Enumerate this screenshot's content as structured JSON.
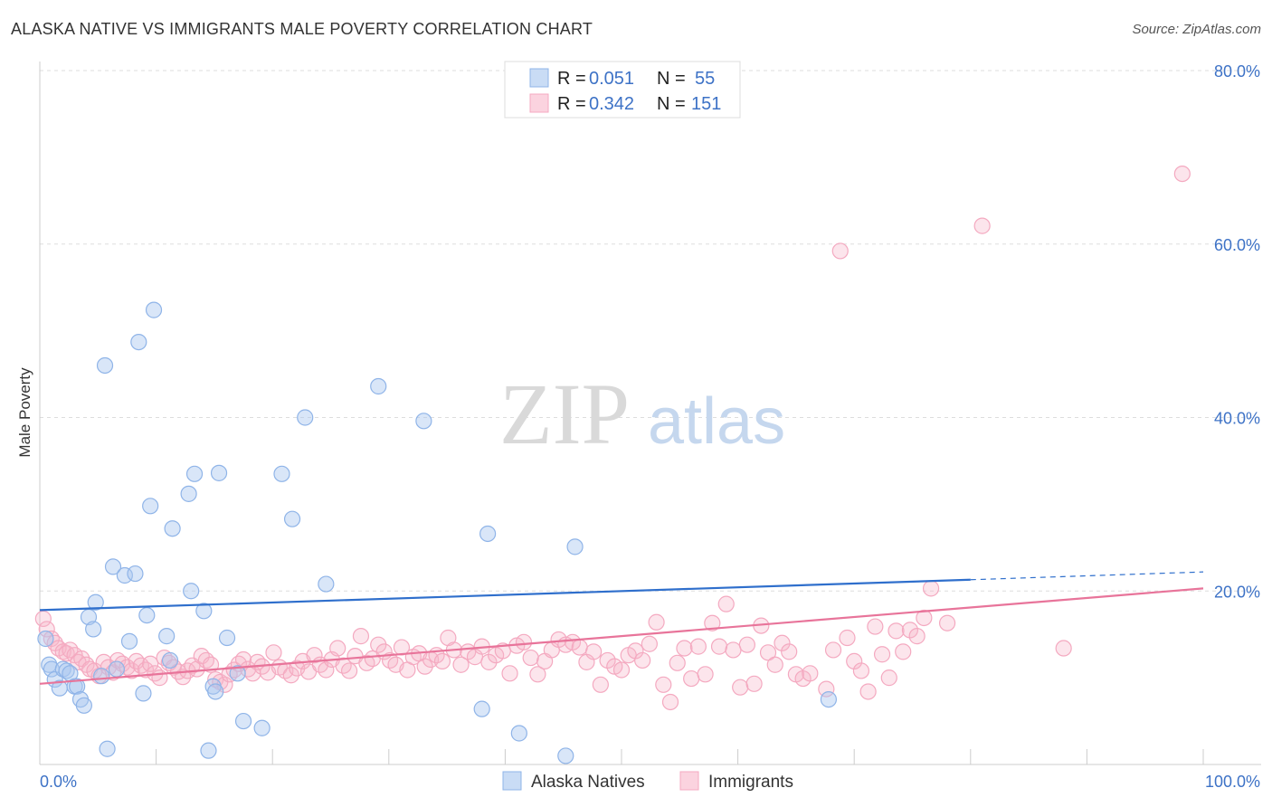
{
  "header": {
    "title": "ALASKA NATIVE VS IMMIGRANTS MALE POVERTY CORRELATION CHART",
    "source": "Source: ZipAtlas.com"
  },
  "watermark": {
    "part1": "ZIP",
    "part2": "atlas"
  },
  "legend": {
    "rows": [
      {
        "r_label": "R =",
        "r_value": "0.051",
        "n_label": "N =",
        "n_value": "55"
      },
      {
        "r_label": "R =",
        "r_value": "0.342",
        "n_label": "N =",
        "n_value": "151"
      }
    ]
  },
  "chart_data": {
    "type": "scatter",
    "ylabel": "Male Poverty",
    "xlim": [
      0,
      100
    ],
    "ylim": [
      0,
      80
    ],
    "x_tick_labels": [
      {
        "value": 0,
        "label": "0.0%"
      },
      {
        "value": 100,
        "label": "100.0%"
      }
    ],
    "y_ticks": [
      {
        "value": 20,
        "label": "20.0%"
      },
      {
        "value": 40,
        "label": "40.0%"
      },
      {
        "value": 60,
        "label": "60.0%"
      },
      {
        "value": 80,
        "label": "80.0%"
      }
    ],
    "grid": true,
    "legend_position": "top-center",
    "series": [
      {
        "name": "Alaska Natives",
        "color": "#8fb4e8",
        "line_color": "#2f6fcc",
        "trend": {
          "x0": 0,
          "y0": 17.8,
          "x1": 80,
          "y1": 21.3,
          "dash_to_x": 100,
          "dash_to_y": 22.2
        },
        "points": [
          [
            0.5,
            14.5
          ],
          [
            0.8,
            11.5
          ],
          [
            1.0,
            11.0
          ],
          [
            1.3,
            9.8
          ],
          [
            1.7,
            8.8
          ],
          [
            2.0,
            11.0
          ],
          [
            2.3,
            10.8
          ],
          [
            2.6,
            10.5
          ],
          [
            3.0,
            9.0
          ],
          [
            3.2,
            9.0
          ],
          [
            3.5,
            7.5
          ],
          [
            3.8,
            6.8
          ],
          [
            4.2,
            17.0
          ],
          [
            4.6,
            15.6
          ],
          [
            4.8,
            18.7
          ],
          [
            5.3,
            10.2
          ],
          [
            5.6,
            46.0
          ],
          [
            5.8,
            1.8
          ],
          [
            6.3,
            22.8
          ],
          [
            6.6,
            11.0
          ],
          [
            7.3,
            21.8
          ],
          [
            7.7,
            14.2
          ],
          [
            8.2,
            22.0
          ],
          [
            8.5,
            48.7
          ],
          [
            8.9,
            8.2
          ],
          [
            9.2,
            17.2
          ],
          [
            9.5,
            29.8
          ],
          [
            9.8,
            52.4
          ],
          [
            10.9,
            14.8
          ],
          [
            11.2,
            12.0
          ],
          [
            11.4,
            27.2
          ],
          [
            12.8,
            31.2
          ],
          [
            13.0,
            20.0
          ],
          [
            13.3,
            33.5
          ],
          [
            14.1,
            17.7
          ],
          [
            14.5,
            1.6
          ],
          [
            14.9,
            9.0
          ],
          [
            15.1,
            8.4
          ],
          [
            15.4,
            33.6
          ],
          [
            16.1,
            14.6
          ],
          [
            17.0,
            10.5
          ],
          [
            17.5,
            5.0
          ],
          [
            19.1,
            4.2
          ],
          [
            20.8,
            33.5
          ],
          [
            21.7,
            28.3
          ],
          [
            22.8,
            40.0
          ],
          [
            24.6,
            20.8
          ],
          [
            29.1,
            43.6
          ],
          [
            33.0,
            39.6
          ],
          [
            38.0,
            6.4
          ],
          [
            38.5,
            26.6
          ],
          [
            41.2,
            3.6
          ],
          [
            45.2,
            1.0
          ],
          [
            46.0,
            25.1
          ],
          [
            67.8,
            7.5
          ]
        ]
      },
      {
        "name": "Immigrants",
        "color": "#f4a9c0",
        "line_color": "#e8749a",
        "trend": {
          "x0": 0,
          "y0": 9.3,
          "x1": 100,
          "y1": 20.3
        },
        "points": [
          [
            0.3,
            16.8
          ],
          [
            0.6,
            15.6
          ],
          [
            1.0,
            14.5
          ],
          [
            1.3,
            14.0
          ],
          [
            1.6,
            13.4
          ],
          [
            2.0,
            13.0
          ],
          [
            2.3,
            12.8
          ],
          [
            2.6,
            13.2
          ],
          [
            3.0,
            12.6
          ],
          [
            3.3,
            11.8
          ],
          [
            3.6,
            12.2
          ],
          [
            4.0,
            11.5
          ],
          [
            4.3,
            11.0
          ],
          [
            4.7,
            10.8
          ],
          [
            5.1,
            10.2
          ],
          [
            5.5,
            11.8
          ],
          [
            5.9,
            11.2
          ],
          [
            6.3,
            10.6
          ],
          [
            6.7,
            12.0
          ],
          [
            7.1,
            11.6
          ],
          [
            7.5,
            11.2
          ],
          [
            7.9,
            10.8
          ],
          [
            8.3,
            11.9
          ],
          [
            8.7,
            11.4
          ],
          [
            9.1,
            10.9
          ],
          [
            9.5,
            11.6
          ],
          [
            9.9,
            10.5
          ],
          [
            10.3,
            10.0
          ],
          [
            10.7,
            12.3
          ],
          [
            11.1,
            11.7
          ],
          [
            11.5,
            11.2
          ],
          [
            11.9,
            10.7
          ],
          [
            12.3,
            10.1
          ],
          [
            12.7,
            10.8
          ],
          [
            13.1,
            11.4
          ],
          [
            13.5,
            11.0
          ],
          [
            13.9,
            12.5
          ],
          [
            14.3,
            12.0
          ],
          [
            14.7,
            11.5
          ],
          [
            15.1,
            9.8
          ],
          [
            15.5,
            9.5
          ],
          [
            15.9,
            9.2
          ],
          [
            16.3,
            10.4
          ],
          [
            16.7,
            10.9
          ],
          [
            17.1,
            11.6
          ],
          [
            17.5,
            12.1
          ],
          [
            17.9,
            11.0
          ],
          [
            18.3,
            10.5
          ],
          [
            18.7,
            11.8
          ],
          [
            19.1,
            11.3
          ],
          [
            19.6,
            10.6
          ],
          [
            20.1,
            12.9
          ],
          [
            20.6,
            11.2
          ],
          [
            21.1,
            10.8
          ],
          [
            21.6,
            10.3
          ],
          [
            22.1,
            11.1
          ],
          [
            22.6,
            11.9
          ],
          [
            23.1,
            10.7
          ],
          [
            23.6,
            12.6
          ],
          [
            24.1,
            11.5
          ],
          [
            24.6,
            10.9
          ],
          [
            25.1,
            12.1
          ],
          [
            25.6,
            13.4
          ],
          [
            26.1,
            11.4
          ],
          [
            26.6,
            10.8
          ],
          [
            27.1,
            12.5
          ],
          [
            27.6,
            14.8
          ],
          [
            28.1,
            11.7
          ],
          [
            28.6,
            12.2
          ],
          [
            29.1,
            13.8
          ],
          [
            29.6,
            13.0
          ],
          [
            30.1,
            12.0
          ],
          [
            30.6,
            11.5
          ],
          [
            31.1,
            13.5
          ],
          [
            31.6,
            10.9
          ],
          [
            32.1,
            12.4
          ],
          [
            32.6,
            12.8
          ],
          [
            33.1,
            11.3
          ],
          [
            33.6,
            12.1
          ],
          [
            34.1,
            12.6
          ],
          [
            34.6,
            11.9
          ],
          [
            35.1,
            14.6
          ],
          [
            35.6,
            13.2
          ],
          [
            36.2,
            11.5
          ],
          [
            36.8,
            13.0
          ],
          [
            37.4,
            12.4
          ],
          [
            38.0,
            13.6
          ],
          [
            38.6,
            11.8
          ],
          [
            39.2,
            12.6
          ],
          [
            39.8,
            13.1
          ],
          [
            40.4,
            10.5
          ],
          [
            41.0,
            13.7
          ],
          [
            41.6,
            14.1
          ],
          [
            42.2,
            12.3
          ],
          [
            42.8,
            10.4
          ],
          [
            43.4,
            11.9
          ],
          [
            44.0,
            13.2
          ],
          [
            44.6,
            14.4
          ],
          [
            45.2,
            13.8
          ],
          [
            45.8,
            14.1
          ],
          [
            46.4,
            13.5
          ],
          [
            47.0,
            11.8
          ],
          [
            47.6,
            13.0
          ],
          [
            48.2,
            9.2
          ],
          [
            48.8,
            12.0
          ],
          [
            49.4,
            11.3
          ],
          [
            50.0,
            10.9
          ],
          [
            50.6,
            12.6
          ],
          [
            51.2,
            13.1
          ],
          [
            51.8,
            12.0
          ],
          [
            52.4,
            13.9
          ],
          [
            53.0,
            16.4
          ],
          [
            53.6,
            9.2
          ],
          [
            54.2,
            7.2
          ],
          [
            54.8,
            11.7
          ],
          [
            55.4,
            13.4
          ],
          [
            56.0,
            9.9
          ],
          [
            56.6,
            13.6
          ],
          [
            57.2,
            10.4
          ],
          [
            57.8,
            16.3
          ],
          [
            58.4,
            13.6
          ],
          [
            59.0,
            18.5
          ],
          [
            59.6,
            13.2
          ],
          [
            60.2,
            8.9
          ],
          [
            60.8,
            13.8
          ],
          [
            61.4,
            9.3
          ],
          [
            62.0,
            16.0
          ],
          [
            62.6,
            12.9
          ],
          [
            63.2,
            11.5
          ],
          [
            63.8,
            14.0
          ],
          [
            64.4,
            13.0
          ],
          [
            65.0,
            10.4
          ],
          [
            65.6,
            9.9
          ],
          [
            66.2,
            10.5
          ],
          [
            67.6,
            8.7
          ],
          [
            68.2,
            13.2
          ],
          [
            68.8,
            59.2
          ],
          [
            69.4,
            14.6
          ],
          [
            70.0,
            11.9
          ],
          [
            70.6,
            10.8
          ],
          [
            71.2,
            8.4
          ],
          [
            71.8,
            15.9
          ],
          [
            72.4,
            12.7
          ],
          [
            73.0,
            10.0
          ],
          [
            73.6,
            15.4
          ],
          [
            74.2,
            13.0
          ],
          [
            74.8,
            15.5
          ],
          [
            75.4,
            14.8
          ],
          [
            76.0,
            16.9
          ],
          [
            76.6,
            20.3
          ],
          [
            78.0,
            16.3
          ],
          [
            81.0,
            62.1
          ],
          [
            88.0,
            13.4
          ],
          [
            98.2,
            68.1
          ]
        ]
      }
    ]
  }
}
